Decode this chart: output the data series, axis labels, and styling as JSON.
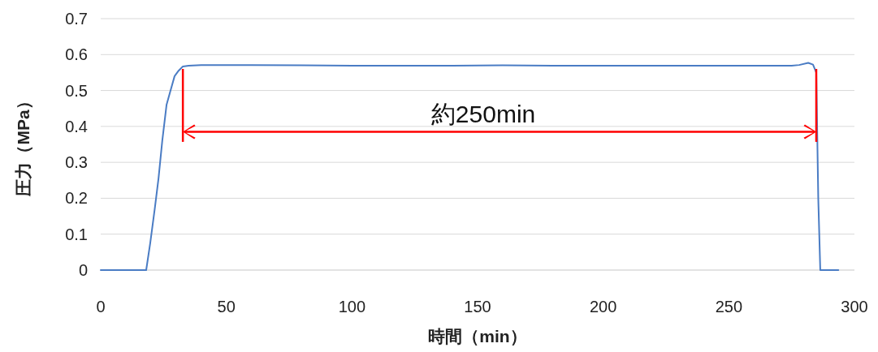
{
  "chart_data": {
    "type": "line",
    "xlabel": "時間（min）",
    "ylabel": "圧力（MPa）",
    "x": [
      0,
      10,
      18.1,
      19.7,
      21.5,
      23,
      24.5,
      26.2,
      27.8,
      29.4,
      31,
      32.7,
      35,
      40,
      60,
      80,
      100,
      120,
      140,
      160,
      180,
      200,
      220,
      240,
      260,
      275,
      278,
      281.6,
      283.5,
      284.8,
      285.6,
      286.4,
      290,
      293.6
    ],
    "series": [
      {
        "color": "#4a7cc4",
        "values": [
          0,
          0,
          0,
          0.075,
          0.17,
          0.255,
          0.36,
          0.46,
          0.5,
          0.54,
          0.555,
          0.567,
          0.569,
          0.571,
          0.571,
          0.57,
          0.569,
          0.569,
          0.569,
          0.57,
          0.569,
          0.569,
          0.569,
          0.569,
          0.569,
          0.569,
          0.571,
          0.577,
          0.572,
          0.55,
          0.2,
          0,
          0,
          0
        ]
      }
    ],
    "xlim": [
      0,
      300
    ],
    "xticks": [
      0,
      50,
      100,
      150,
      200,
      250,
      300
    ],
    "ylim": [
      0,
      0.7
    ],
    "yticks": [
      0,
      0.1,
      0.2,
      0.3,
      0.4,
      0.5,
      0.6,
      0.7
    ],
    "grid": "y",
    "ref_lines": [
      {
        "axis": "x",
        "value": 32.7,
        "color": "#ff0000"
      },
      {
        "axis": "x",
        "value": 284.8,
        "color": "#ff0000"
      }
    ],
    "annotations": [
      "約250min"
    ]
  }
}
